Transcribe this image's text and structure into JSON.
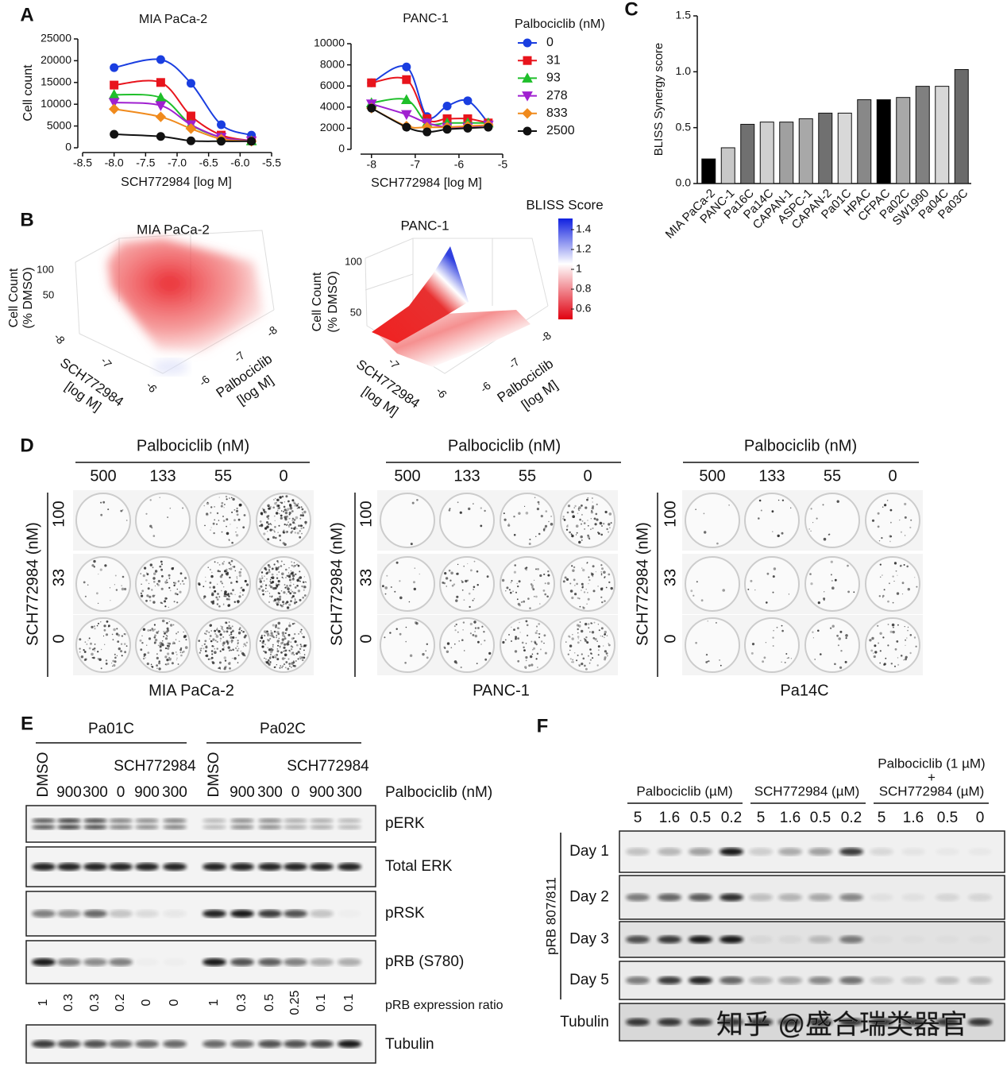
{
  "panel_labels": [
    "A",
    "B",
    "C",
    "D",
    "E",
    "F"
  ],
  "chart_data": [
    {
      "type": "scatter",
      "title": "MIA PaCa-2",
      "x_label": "SCH772984 [log M]",
      "y_label": "Cell count",
      "x": [
        -8,
        -7.26,
        -6.78,
        -6.3,
        -5.82
      ],
      "series": [
        {
          "color": "#1a3ee0",
          "marker": "circle",
          "values": [
            18400,
            20250,
            14800,
            5300,
            2900
          ]
        },
        {
          "color": "#e8141c",
          "marker": "square",
          "values": [
            14400,
            15000,
            7300,
            2900,
            1600
          ]
        },
        {
          "color": "#1fbf2a",
          "marker": "triangle-up",
          "values": [
            12200,
            11500,
            5300,
            2400,
            1600
          ]
        },
        {
          "color": "#a020d0",
          "marker": "triangle-down",
          "values": [
            10400,
            9700,
            5300,
            2400,
            1600
          ]
        },
        {
          "color": "#f08a1c",
          "marker": "diamond",
          "values": [
            8900,
            7100,
            4400,
            2000,
            1500
          ]
        },
        {
          "color": "#111111",
          "marker": "circle",
          "values": [
            3100,
            2600,
            1600,
            1500,
            1500
          ]
        }
      ],
      "xlim": [
        -8.5,
        -5.5
      ],
      "xticks": [
        -8.5,
        {
          "value": -8,
          "label": "-8.0"
        },
        -7.5,
        {
          "value": -7,
          "label": "-7.0"
        },
        -6.5,
        {
          "value": -6,
          "label": "-6.0"
        },
        -5.5
      ],
      "ylim": [
        0,
        25000
      ],
      "yticks": [
        0,
        5000,
        10000,
        15000,
        20000,
        25000
      ]
    },
    {
      "type": "scatter",
      "title": "PANC-1",
      "x_label": "SCH772984 [log M]",
      "legend_title": "Palbociclib (nM)",
      "x": [
        -8,
        -7.2,
        -6.73,
        -6.27,
        -5.8,
        -5.33
      ],
      "series": [
        {
          "name": "0",
          "color": "#1a3ee0",
          "marker": "circle",
          "values": [
            6300,
            7800,
            3100,
            4100,
            4600,
            2500
          ]
        },
        {
          "name": "31",
          "color": "#e8141c",
          "marker": "square",
          "values": [
            6300,
            6600,
            2900,
            2900,
            2900,
            2500
          ]
        },
        {
          "name": "93",
          "color": "#1fbf2a",
          "marker": "triangle-up",
          "values": [
            4400,
            4700,
            2500,
            2500,
            2500,
            2500
          ]
        },
        {
          "name": "278",
          "color": "#a020d0",
          "marker": "triangle-down",
          "values": [
            4300,
            3300,
            2500,
            2100,
            2100,
            2300
          ]
        },
        {
          "name": "833",
          "color": "#f08a1c",
          "marker": "diamond",
          "values": [
            3900,
            2200,
            2100,
            2100,
            2200,
            2300
          ]
        },
        {
          "name": "2500",
          "color": "#111111",
          "marker": "circle",
          "values": [
            3900,
            2100,
            1650,
            1900,
            2000,
            2100
          ]
        }
      ],
      "xlim": [
        -8.25,
        -5
      ],
      "xticks": [
        -8,
        -7,
        -6,
        -5
      ],
      "ylim": [
        0,
        10000
      ],
      "yticks": [
        0,
        2000,
        4000,
        6000,
        8000,
        10000
      ]
    },
    {
      "type": "bar",
      "y_label": "BLISS Synergy score",
      "categories": [
        "MIA PaCa-2",
        "PANC-1",
        "Pa16C",
        "Pa14C",
        "CAPAN-1",
        "ASPC-1",
        "CAPAN-2",
        "Pa01C",
        "HPAC",
        "CFPAC",
        "Pa02C",
        "SW1990",
        "Pa04C",
        "Pa03C"
      ],
      "values": [
        0.22,
        0.32,
        0.53,
        0.55,
        0.55,
        0.58,
        0.63,
        0.63,
        0.75,
        0.75,
        0.77,
        0.87,
        0.87,
        1.02
      ],
      "colors": [
        "#000000",
        "#c8c8c8",
        "#707070",
        "#d0d0d0",
        "#a0a0a0",
        "#a8a8a8",
        "#707070",
        "#d8d8d8",
        "#888888",
        "#000000",
        "#a8a8a8",
        "#808080",
        "#d8d8d8",
        "#6a6a6a"
      ],
      "ylim": [
        0,
        1.5
      ],
      "yticks": [
        {
          "value": 0,
          "label": "0.0"
        },
        0.5,
        {
          "value": 1,
          "label": "1.0"
        },
        1.5
      ]
    }
  ],
  "panel_b": {
    "plots": [
      {
        "title": "MIA PaCa-2",
        "z_label": [
          "Cell Count",
          "(% DMSO)"
        ],
        "z_ticks": [
          "100",
          "50"
        ],
        "x_label": [
          "SCH772984",
          "[log M]"
        ],
        "x_ticks": [
          "-8",
          "-7",
          "-6"
        ],
        "y_label": [
          "Palbociclib",
          "[log M]"
        ],
        "y_ticks": [
          "-6",
          "-7",
          "-8"
        ]
      },
      {
        "title": "PANC-1",
        "z_label": [
          "Cell Count",
          "(% DMSO)"
        ],
        "z_ticks": [
          "100",
          "50"
        ],
        "x_label": [
          "SCH772984",
          "[log M]"
        ],
        "x_ticks": [
          "-7",
          "-6"
        ],
        "y_label": [
          "Palbociclib",
          "[log M]"
        ],
        "y_ticks": [
          "-6",
          "-7",
          "-8"
        ]
      }
    ],
    "colorbar": {
      "title": "BLISS Score",
      "ticks": [
        1.4,
        1.2,
        1,
        0.8,
        0.6
      ]
    }
  },
  "panel_d": {
    "column_title": "Palbociclib (nM)",
    "columns": [
      "500",
      "133",
      "55",
      "0"
    ],
    "row_title": "SCH772984 (nM)",
    "rows": [
      "100",
      "33",
      "0"
    ],
    "cell_lines": [
      "MIA PaCa-2",
      "PANC-1",
      "Pa14C"
    ]
  },
  "panel_e": {
    "groups": [
      "Pa01C",
      "Pa02C"
    ],
    "dmso": "DMSO",
    "drug": "SCH772984",
    "lane_labels": [
      "900",
      "300",
      "0",
      "900",
      "300"
    ],
    "condition_label": "Palbociclib (nM)",
    "rows": [
      "pERK",
      "Total ERK",
      "pRSK",
      "pRB (S780)"
    ],
    "ratio_label": "pRB expression ratio",
    "ratios": [
      [
        1,
        0.3,
        0.3,
        0.2,
        0,
        0
      ],
      [
        1,
        0.3,
        0.5,
        0.25,
        0.1,
        0.1
      ]
    ],
    "loading": "Tubulin"
  },
  "panel_f": {
    "groups": [
      {
        "label": [
          "Palbociclib (µM)"
        ],
        "doses": [
          "5",
          "1.6",
          "0.5",
          "0.2"
        ]
      },
      {
        "label": [
          "SCH772984 (µM)"
        ],
        "doses": [
          "5",
          "1.6",
          "0.5",
          "0.2"
        ]
      },
      {
        "label": [
          "Palbociclib (1 µM)",
          "+",
          "SCH772984 (µM)"
        ],
        "doses": [
          "5",
          "1.6",
          "0.5",
          "0"
        ]
      }
    ],
    "y_label": "pRB 807/811",
    "rows": [
      "Day 1",
      "Day 2",
      "Day 3",
      "Day 5"
    ],
    "loading": "Tubulin"
  },
  "watermark": "知乎 @盛合瑞类器官"
}
